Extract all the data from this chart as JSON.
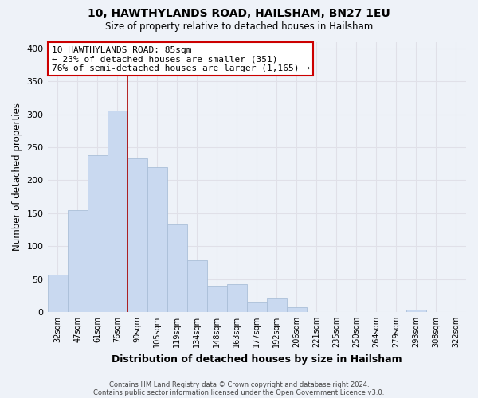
{
  "title": "10, HAWTHYLANDS ROAD, HAILSHAM, BN27 1EU",
  "subtitle": "Size of property relative to detached houses in Hailsham",
  "xlabel": "Distribution of detached houses by size in Hailsham",
  "ylabel": "Number of detached properties",
  "bar_labels": [
    "32sqm",
    "47sqm",
    "61sqm",
    "76sqm",
    "90sqm",
    "105sqm",
    "119sqm",
    "134sqm",
    "148sqm",
    "163sqm",
    "177sqm",
    "192sqm",
    "206sqm",
    "221sqm",
    "235sqm",
    "250sqm",
    "264sqm",
    "279sqm",
    "293sqm",
    "308sqm",
    "322sqm"
  ],
  "bar_values": [
    57,
    155,
    238,
    305,
    233,
    220,
    133,
    78,
    40,
    42,
    15,
    20,
    7,
    0,
    0,
    0,
    0,
    0,
    4,
    0,
    0
  ],
  "bar_color": "#c9d9f0",
  "bar_edge_color": "#aabfd8",
  "red_line_x": 3.5,
  "annotation_box_text": "10 HAWTHYLANDS ROAD: 85sqm\n← 23% of detached houses are smaller (351)\n76% of semi-detached houses are larger (1,165) →",
  "annotation_box_color": "#ffffff",
  "annotation_box_edge_color": "#cc0000",
  "ylim": [
    0,
    410
  ],
  "yticks": [
    0,
    50,
    100,
    150,
    200,
    250,
    300,
    350,
    400
  ],
  "grid_color": "#e0e0e8",
  "background_color": "#eef2f8",
  "footer_line1": "Contains HM Land Registry data © Crown copyright and database right 2024.",
  "footer_line2": "Contains public sector information licensed under the Open Government Licence v3.0."
}
